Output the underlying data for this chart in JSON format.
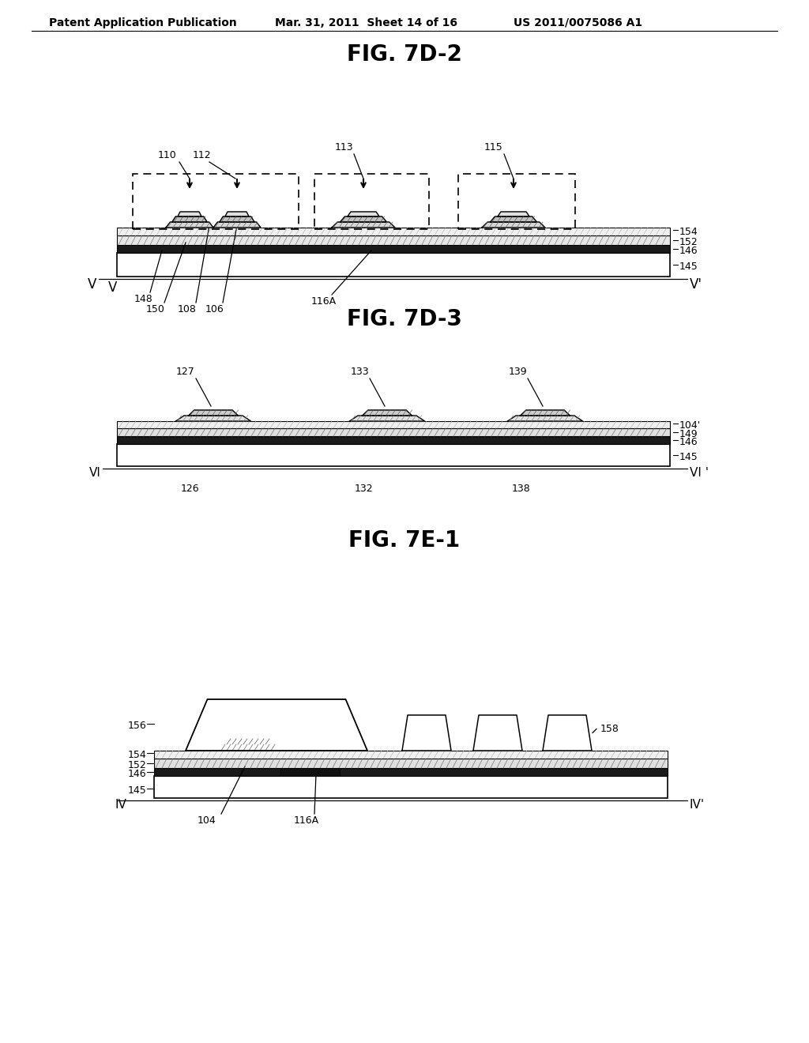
{
  "title1": "FIG. 7D-2",
  "title2": "FIG. 7D-3",
  "title3": "FIG. 7E-1",
  "header_left": "Patent Application Publication",
  "header_mid": "Mar. 31, 2011  Sheet 14 of 16",
  "header_right": "US 2011/0075086 A1",
  "bg_color": "#ffffff",
  "lc": "#000000"
}
